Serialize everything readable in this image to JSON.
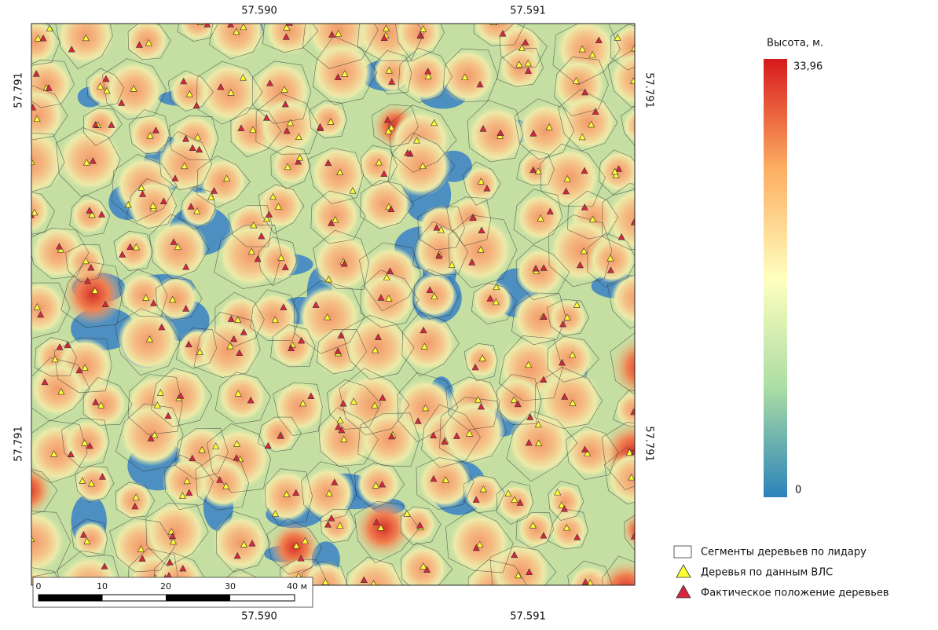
{
  "map": {
    "coords": {
      "top": [
        "57.590",
        "57.591"
      ],
      "bottom": [
        "57.590",
        "57.591"
      ],
      "left": [
        "57.791",
        "57.791"
      ],
      "right": [
        "57.791",
        "57.791"
      ]
    },
    "colorbar": {
      "title": "Высота, м.",
      "max_label": "33,96",
      "min_label": "0"
    },
    "legend": [
      "Сегменты деревьев по лидару",
      "Деревья по данным ВЛС",
      "Фактическое положение деревьев"
    ],
    "scalebar": [
      "0",
      "10",
      "20",
      "30",
      "40 м"
    ]
  }
}
